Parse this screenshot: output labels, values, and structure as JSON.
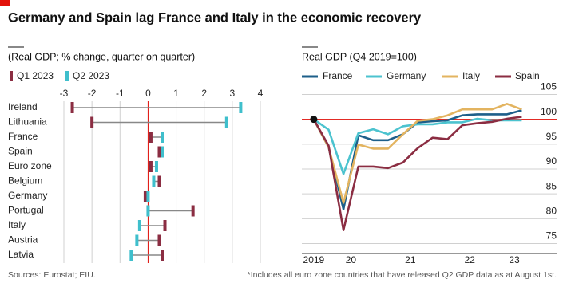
{
  "title": "Germany and Spain lag France and Italy in the economic recovery",
  "source": "Sources: Eurostat; EIU.",
  "note": "*Includes all euro zone countries that have released Q2 GDP data as at August 1st.",
  "chart_data": [
    {
      "type": "dumbbell",
      "subtitle": "(Real GDP; % change, quarter on quarter)",
      "categories": [
        "Ireland",
        "Lithuania",
        "France",
        "Spain",
        "Euro zone",
        "Belgium",
        "Germany",
        "Portugal",
        "Italy",
        "Austria",
        "Latvia"
      ],
      "series": [
        {
          "name": "Q1 2023",
          "color": "#8b2d42",
          "values": [
            -2.7,
            -2.0,
            0.1,
            0.4,
            0.1,
            0.4,
            -0.1,
            1.6,
            0.6,
            0.4,
            0.5
          ]
        },
        {
          "name": "Q2 2023",
          "color": "#3fbfcc",
          "values": [
            3.3,
            2.8,
            0.5,
            0.5,
            0.3,
            0.2,
            0.0,
            0.0,
            -0.3,
            -0.4,
            -0.6
          ]
        }
      ],
      "xlim": [
        -3,
        4
      ],
      "xticks": [
        -3,
        -2,
        -1,
        0,
        1,
        2,
        3,
        4
      ],
      "grid": true
    },
    {
      "type": "line",
      "subtitle": "Real GDP (Q4 2019=100)",
      "baseline": 100,
      "x": [
        2019.75,
        2020.0,
        2020.25,
        2020.5,
        2020.75,
        2021.0,
        2021.25,
        2021.5,
        2021.75,
        2022.0,
        2022.25,
        2022.5,
        2022.75,
        2023.0,
        2023.25
      ],
      "series": [
        {
          "name": "France",
          "color": "#1d5f8a",
          "values": [
            100,
            94.4,
            81.9,
            96.8,
            95.8,
            95.8,
            97.0,
            99.4,
            99.6,
            99.8,
            100.8,
            101.0,
            101.0,
            101.0,
            101.8
          ]
        },
        {
          "name": "Germany",
          "color": "#4cc3cf",
          "values": [
            100,
            97.9,
            89.0,
            97.2,
            98.0,
            97.0,
            98.6,
            99.0,
            99.0,
            99.4,
            99.4,
            100.1,
            99.8,
            99.8,
            99.8
          ]
        },
        {
          "name": "Italy",
          "color": "#e3b460",
          "values": [
            100,
            94.4,
            83.2,
            94.9,
            94.1,
            94.1,
            97.0,
            99.7,
            100.0,
            100.8,
            102.0,
            102.0,
            102.0,
            103.1,
            102.0
          ]
        },
        {
          "name": "Spain",
          "color": "#8b2d42",
          "values": [
            100,
            94.7,
            77.7,
            90.5,
            90.5,
            90.2,
            91.3,
            94.2,
            96.3,
            96.0,
            98.8,
            99.2,
            99.5,
            100.1,
            100.5
          ]
        }
      ],
      "xlim": [
        2019.55,
        2023.5
      ],
      "xticks": [
        {
          "value": 2019.75,
          "label": "2019"
        },
        {
          "value": 2020.375,
          "label": "20"
        },
        {
          "value": 2021.375,
          "label": "21"
        },
        {
          "value": 2022.375,
          "label": "22"
        },
        {
          "value": 2023.125,
          "label": "23"
        }
      ],
      "ylim": [
        73,
        107
      ],
      "yticks": [
        75,
        80,
        85,
        90,
        95,
        100,
        105
      ],
      "grid": true
    }
  ]
}
